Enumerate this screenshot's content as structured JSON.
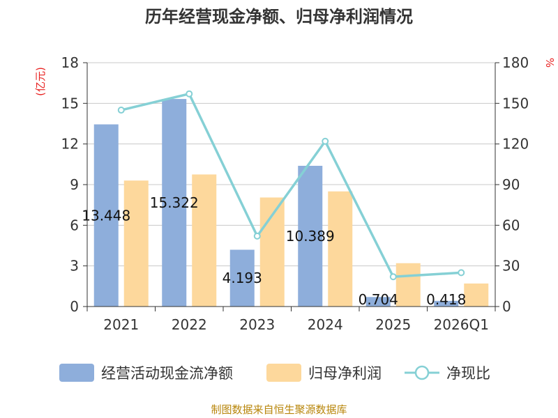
{
  "chart_data": {
    "type": "bar",
    "title": "历年经营现金净额、归母净利润情况",
    "categories": [
      "2021",
      "2022",
      "2023",
      "2024",
      "2025",
      "2026Q1"
    ],
    "left_axis": {
      "unit_label": "(亿元)",
      "range": [
        0,
        18
      ],
      "ticks": [
        0,
        3,
        6,
        9,
        12,
        15,
        18
      ]
    },
    "right_axis": {
      "unit_label": "%",
      "range": [
        0,
        180
      ],
      "ticks": [
        0,
        30,
        60,
        90,
        120,
        150,
        180
      ]
    },
    "series": [
      {
        "name": "经营活动现金流净额",
        "type": "bar",
        "axis": "left",
        "color": "#8eaedb",
        "values": [
          13.448,
          15.322,
          4.193,
          10.389,
          0.704,
          0.418
        ],
        "labels": [
          "13.448",
          "15.322",
          "4.193",
          "10.389",
          "0.704",
          "0.418"
        ]
      },
      {
        "name": "归母净利润",
        "type": "bar",
        "axis": "left",
        "color": "#fdd89c",
        "values": [
          9.3,
          9.75,
          8.05,
          8.5,
          3.2,
          1.7
        ]
      },
      {
        "name": "净现比",
        "type": "line",
        "axis": "right",
        "color": "#85d0d5",
        "values": [
          145,
          157,
          52,
          122,
          22,
          25
        ]
      }
    ],
    "grid": true,
    "legend_position": "bottom"
  },
  "source_text": "制图数据来自恒生聚源数据库"
}
